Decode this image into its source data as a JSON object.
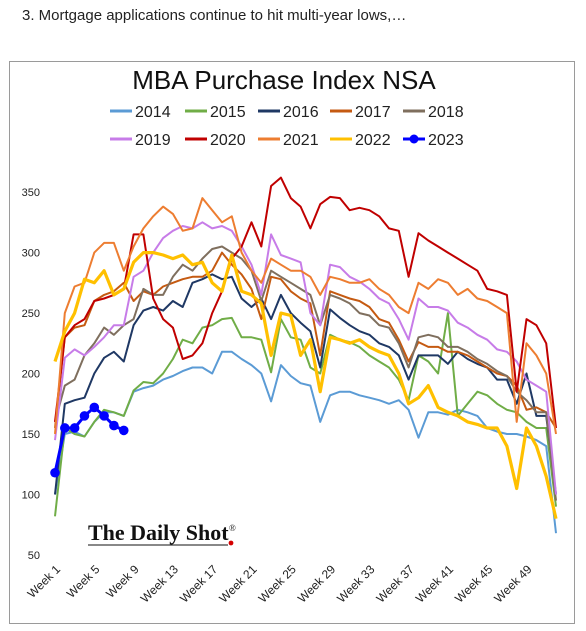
{
  "headline": "3. Mortgage applications continue to hit multi-year lows,…",
  "watermark": {
    "text": "The Daily Shot",
    "reg": "®"
  },
  "chart_data": {
    "type": "line",
    "title": "MBA Purchase Index NSA",
    "ylim": [
      50,
      360
    ],
    "yticks": [
      50,
      100,
      150,
      200,
      250,
      300,
      350
    ],
    "xlim": [
      1,
      52
    ],
    "xtick_positions": [
      1,
      5,
      9,
      13,
      17,
      21,
      25,
      29,
      33,
      37,
      41,
      45,
      49
    ],
    "xtick_labels": [
      "Week 1",
      "Week 5",
      "Week 9",
      "Week 13",
      "Week 17",
      "Week 21",
      "Week 25",
      "Week 29",
      "Week 33",
      "Week 37",
      "Week 41",
      "Week 45",
      "Week 49"
    ],
    "grid": false,
    "legend": "top",
    "series": [
      {
        "name": "2014",
        "color": "#5b9bd5",
        "values": [
          100,
          150,
          152,
          148,
          160,
          168,
          168,
          165,
          185,
          188,
          190,
          195,
          198,
          202,
          205,
          205,
          200,
          218,
          218,
          212,
          207,
          200,
          177,
          207,
          198,
          192,
          190,
          160,
          182,
          185,
          185,
          182,
          180,
          178,
          175,
          178,
          170,
          147,
          168,
          168,
          166,
          170,
          168,
          165,
          155,
          152,
          150,
          150,
          148,
          145,
          140,
          68
        ]
      },
      {
        "name": "2015",
        "color": "#70ad47",
        "values": [
          82,
          155,
          150,
          148,
          160,
          170,
          168,
          165,
          186,
          193,
          192,
          200,
          212,
          228,
          225,
          238,
          240,
          245,
          246,
          230,
          230,
          228,
          201,
          245,
          230,
          228,
          205,
          200,
          232,
          228,
          226,
          222,
          215,
          210,
          205,
          195,
          178,
          215,
          210,
          200,
          250,
          165,
          175,
          185,
          182,
          175,
          170,
          168,
          160,
          155,
          155,
          90
        ]
      },
      {
        "name": "2016",
        "color": "#1f3864",
        "values": [
          100,
          175,
          178,
          180,
          200,
          213,
          218,
          210,
          240,
          252,
          255,
          252,
          260,
          255,
          275,
          278,
          282,
          278,
          280,
          262,
          255,
          262,
          245,
          265,
          250,
          242,
          235,
          205,
          253,
          246,
          240,
          235,
          232,
          225,
          222,
          215,
          195,
          215,
          215,
          215,
          208,
          218,
          212,
          208,
          205,
          195,
          195,
          175,
          200,
          165,
          165,
          100
        ]
      },
      {
        "name": "2017",
        "color": "#c55a11",
        "values": [
          155,
          230,
          238,
          240,
          260,
          265,
          268,
          275,
          260,
          268,
          265,
          272,
          275,
          278,
          280,
          280,
          285,
          300,
          290,
          282,
          270,
          245,
          280,
          278,
          268,
          262,
          258,
          215,
          268,
          265,
          262,
          260,
          255,
          245,
          242,
          228,
          210,
          226,
          222,
          222,
          218,
          218,
          215,
          210,
          205,
          200,
          198,
          190,
          170,
          172,
          168,
          155
        ]
      },
      {
        "name": "2018",
        "color": "#7f6f5e",
        "values": [
          160,
          190,
          195,
          215,
          225,
          238,
          232,
          240,
          245,
          270,
          265,
          265,
          280,
          290,
          285,
          295,
          303,
          305,
          300,
          295,
          285,
          260,
          285,
          280,
          275,
          270,
          265,
          240,
          265,
          262,
          258,
          250,
          248,
          240,
          238,
          225,
          205,
          230,
          232,
          230,
          222,
          222,
          218,
          212,
          208,
          202,
          198,
          185,
          178,
          168,
          168,
          95
        ]
      },
      {
        "name": "2019",
        "color": "#c77ce8",
        "values": [
          145,
          213,
          220,
          215,
          222,
          230,
          240,
          240,
          280,
          285,
          300,
          312,
          318,
          322,
          320,
          325,
          320,
          322,
          318,
          305,
          290,
          265,
          315,
          298,
          295,
          292,
          250,
          240,
          290,
          288,
          280,
          276,
          270,
          262,
          258,
          245,
          228,
          262,
          255,
          255,
          252,
          242,
          238,
          232,
          228,
          220,
          218,
          210,
          195,
          190,
          185,
          100
        ]
      },
      {
        "name": "2020",
        "color": "#c00000",
        "values": [
          160,
          230,
          240,
          245,
          260,
          262,
          265,
          270,
          315,
          315,
          262,
          245,
          238,
          212,
          215,
          225,
          250,
          268,
          295,
          305,
          325,
          305,
          355,
          362,
          345,
          338,
          320,
          340,
          346,
          345,
          335,
          337,
          335,
          330,
          320,
          318,
          280,
          316,
          310,
          305,
          300,
          295,
          290,
          285,
          270,
          268,
          265,
          185,
          245,
          240,
          225,
          155
        ]
      },
      {
        "name": "2021",
        "color": "#ed7d31",
        "values": [
          150,
          250,
          272,
          275,
          300,
          308,
          308,
          285,
          305,
          320,
          330,
          338,
          332,
          318,
          320,
          345,
          335,
          325,
          330,
          300,
          285,
          275,
          295,
          290,
          285,
          285,
          280,
          265,
          280,
          278,
          275,
          275,
          278,
          270,
          265,
          255,
          250,
          275,
          270,
          278,
          275,
          265,
          270,
          262,
          260,
          255,
          250,
          160,
          225,
          215,
          200,
          150
        ]
      },
      {
        "name": "2022",
        "color": "#ffc000",
        "values": [
          210,
          235,
          250,
          278,
          275,
          285,
          265,
          270,
          292,
          300,
          300,
          298,
          295,
          298,
          290,
          292,
          275,
          268,
          298,
          268,
          265,
          258,
          215,
          250,
          248,
          215,
          228,
          185,
          230,
          228,
          225,
          228,
          222,
          218,
          215,
          200,
          175,
          180,
          190,
          172,
          168,
          165,
          160,
          158,
          155,
          155,
          140,
          105,
          155,
          140,
          115,
          80
        ]
      },
      {
        "name": "2023",
        "color": "#0000ff",
        "markers": true,
        "values": [
          118,
          155,
          155,
          165,
          172,
          165,
          157,
          153
        ]
      }
    ]
  }
}
